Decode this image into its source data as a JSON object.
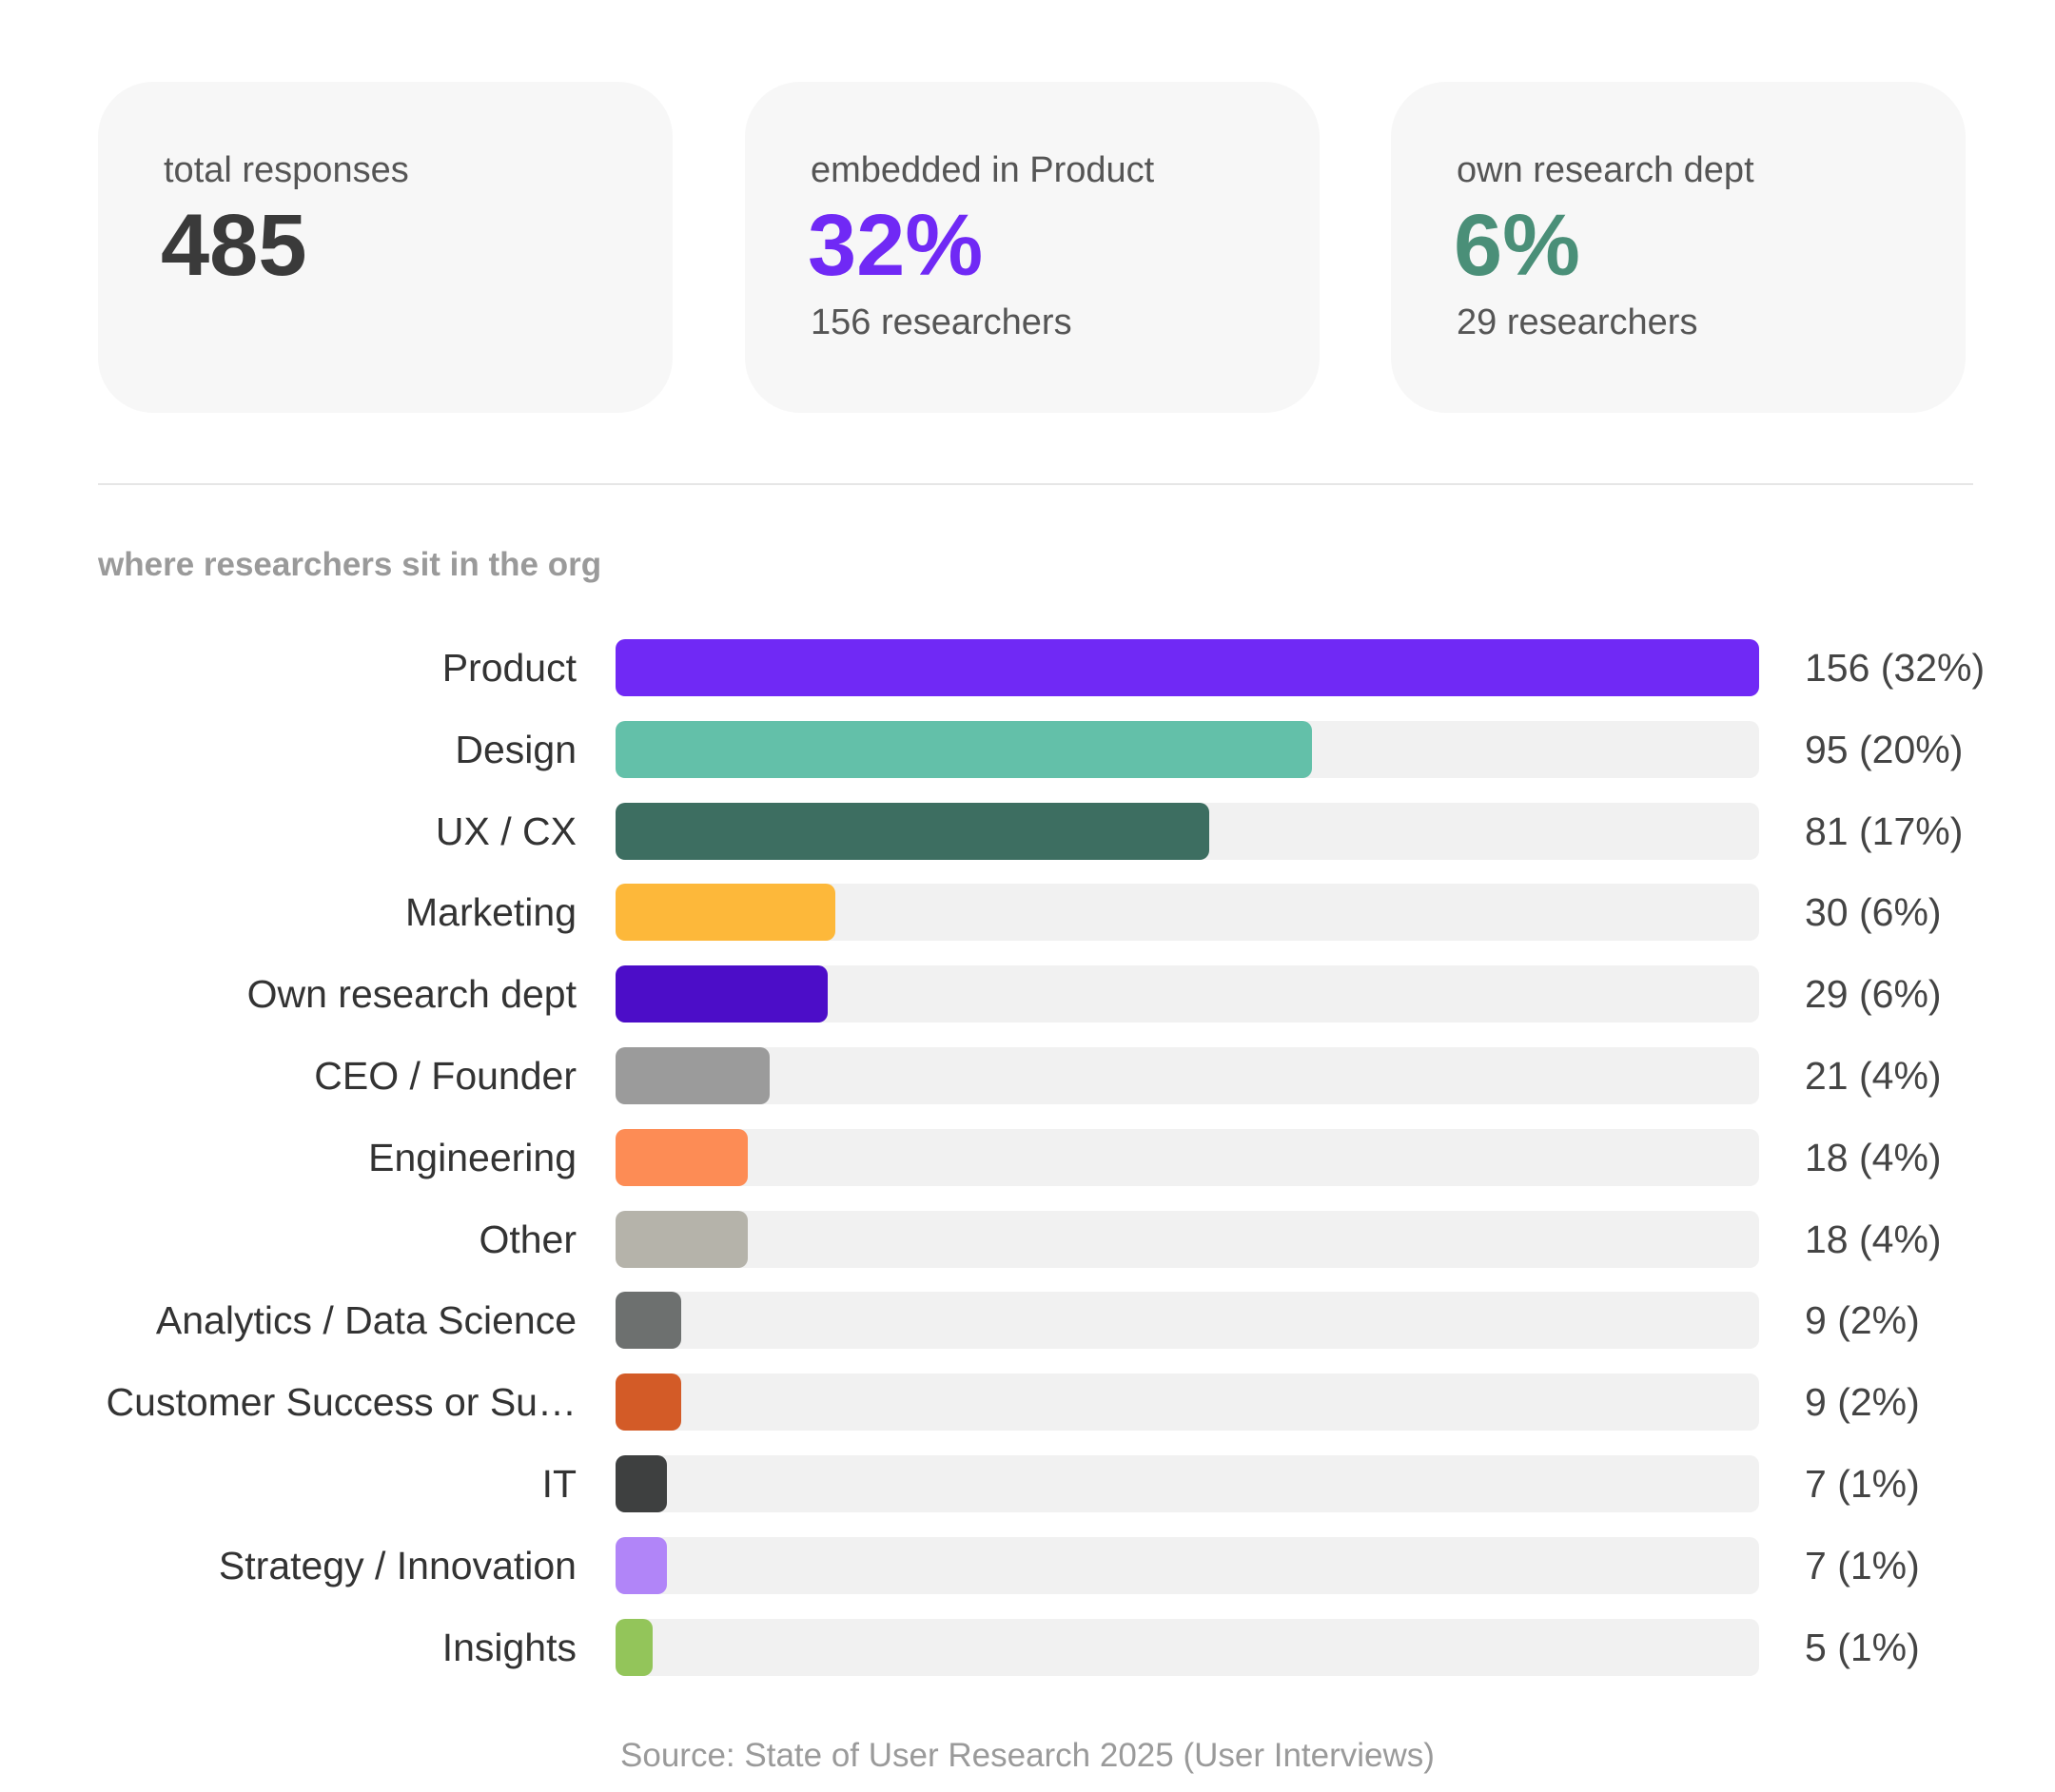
{
  "stats": [
    {
      "label": "total responses",
      "value": "485",
      "sub": "",
      "color": "#3a3a3a"
    },
    {
      "label": "embedded in Product",
      "value": "32%",
      "sub": "156 researchers",
      "color": "#7029f5"
    },
    {
      "label": "own research dept",
      "value": "6%",
      "sub": "29 researchers",
      "color": "#4a8f78"
    }
  ],
  "section_title": "where researchers sit in the org",
  "source": "Source: State of User Research 2025 (User Interviews)",
  "chart_data": {
    "type": "bar",
    "orientation": "horizontal",
    "title": "where researchers sit in the org",
    "categories": [
      "Product",
      "Design",
      "UX / CX",
      "Marketing",
      "Own research dept",
      "CEO / Founder",
      "Engineering",
      "Other",
      "Analytics / Data Science",
      "Customer Success or Su…",
      "IT",
      "Strategy / Innovation",
      "Insights"
    ],
    "values": [
      156,
      95,
      81,
      30,
      29,
      21,
      18,
      18,
      9,
      9,
      7,
      7,
      5
    ],
    "value_labels": [
      "156 (32%)",
      "95 (20%)",
      "81 (17%)",
      "30 (6%)",
      "29 (6%)",
      "21 (4%)",
      "18 (4%)",
      "18 (4%)",
      "9 (2%)",
      "9 (2%)",
      "7 (1%)",
      "7 (1%)",
      "5 (1%)"
    ],
    "colors": [
      "#7029f5",
      "#63c0a9",
      "#3d6e61",
      "#fdb83a",
      "#4c0dc8",
      "#9b9b9b",
      "#fd8c55",
      "#b5b3aa",
      "#6d706f",
      "#d35b27",
      "#3e4040",
      "#b185f8",
      "#93c55a"
    ],
    "xlim": [
      0,
      156
    ],
    "grid": false,
    "legend": "none"
  }
}
